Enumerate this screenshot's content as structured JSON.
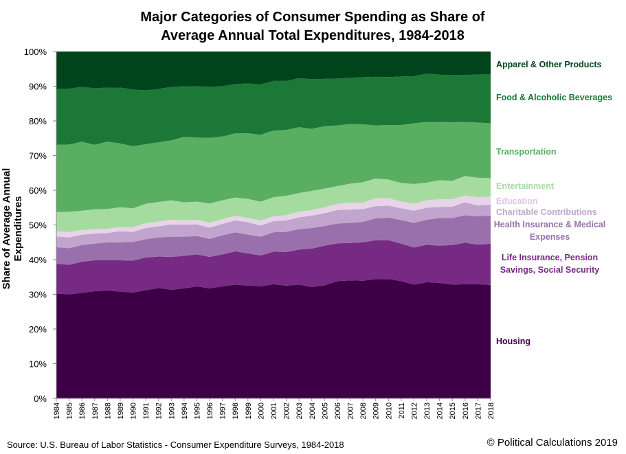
{
  "chart_data": {
    "type": "area",
    "stacked": true,
    "title": "Major Categories of Consumer Spending as Share of Average Annual Total Expenditures, 1984-2018",
    "title_lines": [
      "Major Categories of Consumer Spending as Share of",
      "Average Annual Total Expenditures, 1984-2018"
    ],
    "xlabel": "",
    "ylabel": "Share of Average Annual Expenditures",
    "ylim": [
      0,
      100
    ],
    "yticks": [
      "0%",
      "10%",
      "20%",
      "30%",
      "40%",
      "50%",
      "60%",
      "70%",
      "80%",
      "90%",
      "100%"
    ],
    "x": [
      1984,
      1985,
      1986,
      1987,
      1988,
      1989,
      1990,
      1991,
      1992,
      1993,
      1994,
      1995,
      1996,
      1997,
      1998,
      1999,
      2000,
      2001,
      2002,
      2003,
      2004,
      2005,
      2006,
      2007,
      2008,
      2009,
      2010,
      2011,
      2012,
      2013,
      2014,
      2015,
      2016,
      2017,
      2018
    ],
    "legend_placement": "right",
    "grid": false,
    "series": [
      {
        "name": "Housing",
        "color": "#3d0046",
        "label_lines": [
          "Housing"
        ],
        "values": [
          30.2,
          30.0,
          30.4,
          30.9,
          31.1,
          30.8,
          30.5,
          31.2,
          31.8,
          31.3,
          31.7,
          32.3,
          31.7,
          32.3,
          32.8,
          32.5,
          32.3,
          32.9,
          32.5,
          32.8,
          32.1,
          32.6,
          33.8,
          34.0,
          33.9,
          34.4,
          34.4,
          33.8,
          32.8,
          33.5,
          33.3,
          32.8,
          32.9,
          32.9,
          32.7
        ]
      },
      {
        "name": "Life Insurance, Pension Savings, Social Security",
        "color": "#762a83",
        "label_lines": [
          "Life Insurance, Pension",
          "Savings, Social Security"
        ],
        "values": [
          8.6,
          8.5,
          9.0,
          8.9,
          8.7,
          9.0,
          9.2,
          9.4,
          9.1,
          9.5,
          9.4,
          9.2,
          9.1,
          9.2,
          9.6,
          9.3,
          8.9,
          9.4,
          9.7,
          10.1,
          11.1,
          11.4,
          10.9,
          10.8,
          11.1,
          11.2,
          11.2,
          10.8,
          10.7,
          10.8,
          10.7,
          11.4,
          12.0,
          11.4,
          11.9
        ]
      },
      {
        "name": "Health Insurance & Medical Expenses",
        "color": "#9970ab",
        "label_lines": [
          "Health Insurance & Medical",
          "Expenses"
        ],
        "values": [
          4.8,
          4.8,
          4.8,
          4.8,
          5.2,
          5.2,
          5.4,
          5.3,
          5.5,
          5.8,
          5.5,
          5.3,
          5.2,
          5.5,
          5.5,
          5.4,
          5.4,
          5.6,
          5.8,
          5.9,
          5.9,
          5.7,
          5.7,
          5.8,
          5.9,
          6.3,
          6.5,
          6.8,
          7.1,
          7.2,
          8.0,
          7.8,
          7.9,
          8.2,
          8.1
        ]
      },
      {
        "name": "Charitable Contributions",
        "color": "#c2a5cf",
        "label_lines": [
          "Charitable Contributions"
        ],
        "values": [
          3.1,
          3.1,
          3.0,
          2.9,
          2.7,
          3.2,
          2.9,
          3.2,
          3.2,
          3.5,
          3.5,
          3.4,
          3.2,
          3.3,
          3.4,
          3.6,
          3.2,
          3.2,
          3.3,
          3.4,
          3.6,
          3.7,
          3.9,
          3.8,
          3.7,
          3.5,
          3.5,
          3.4,
          3.5,
          3.5,
          3.2,
          3.3,
          3.7,
          3.1,
          3.2
        ]
      },
      {
        "name": "Education",
        "color": "#e7d4e8",
        "label_lines": [
          "Education"
        ],
        "values": [
          1.4,
          1.6,
          1.3,
          1.3,
          1.2,
          1.2,
          1.3,
          1.4,
          1.4,
          1.4,
          1.2,
          1.3,
          1.4,
          1.4,
          1.3,
          1.2,
          1.5,
          1.4,
          1.5,
          1.6,
          1.6,
          1.7,
          1.8,
          2.0,
          1.8,
          2.3,
          2.1,
          2.0,
          2.0,
          2.1,
          2.2,
          2.1,
          2.0,
          2.4,
          2.3
        ]
      },
      {
        "name": "Entertainment",
        "color": "#a6dba0",
        "label_lines": [
          "Entertainment"
        ],
        "values": [
          5.6,
          5.8,
          5.6,
          5.7,
          5.7,
          5.7,
          5.5,
          5.6,
          5.6,
          5.6,
          5.2,
          5.2,
          5.6,
          5.4,
          5.3,
          5.5,
          5.4,
          5.5,
          5.6,
          5.4,
          5.5,
          5.4,
          5.1,
          5.5,
          5.9,
          5.7,
          5.4,
          5.3,
          5.7,
          5.1,
          5.5,
          5.3,
          5.6,
          5.6,
          5.3
        ]
      },
      {
        "name": "Transportation",
        "color": "#5aae61",
        "label_lines": [
          "Transportation"
        ],
        "values": [
          19.4,
          19.4,
          19.9,
          18.6,
          19.4,
          18.4,
          17.9,
          17.2,
          17.2,
          17.3,
          18.9,
          18.5,
          18.9,
          18.4,
          18.5,
          18.9,
          19.3,
          19.2,
          19.0,
          19.0,
          17.9,
          18.0,
          17.5,
          17.2,
          16.7,
          15.3,
          15.7,
          16.7,
          17.5,
          17.5,
          16.8,
          16.9,
          15.6,
          15.9,
          15.8
        ]
      },
      {
        "name": "Food & Alcoholic Beverages",
        "color": "#1b7837",
        "label_lines": [
          "Food & Alcoholic Beverages"
        ],
        "values": [
          16.2,
          16.1,
          15.8,
          16.3,
          15.6,
          16.1,
          16.3,
          15.5,
          15.4,
          15.4,
          14.6,
          14.8,
          14.7,
          14.5,
          14.2,
          14.4,
          14.5,
          14.3,
          14.1,
          14.1,
          14.3,
          13.6,
          13.5,
          13.3,
          13.6,
          14.0,
          13.8,
          14.0,
          13.6,
          13.9,
          13.6,
          13.6,
          13.5,
          13.9,
          14.1
        ]
      },
      {
        "name": "Apparel & Other Products",
        "color": "#00441b",
        "label_lines": [
          "Apparel & Other Products"
        ],
        "values": [
          10.7,
          10.7,
          10.2,
          10.6,
          10.4,
          10.4,
          11.0,
          11.2,
          10.8,
          10.2,
          10.0,
          10.0,
          10.2,
          10.0,
          9.4,
          9.2,
          9.5,
          8.5,
          8.5,
          7.7,
          8.0,
          7.9,
          7.8,
          7.6,
          7.4,
          7.3,
          7.4,
          7.2,
          7.1,
          6.4,
          6.7,
          6.8,
          6.8,
          6.6,
          6.6
        ]
      }
    ]
  },
  "footer": {
    "source": "Source: U.S. Bureau of Labor Statistics - Consumer Expenditure Surveys, 1984-2018",
    "copyright": "© Political Calculations 2019"
  }
}
